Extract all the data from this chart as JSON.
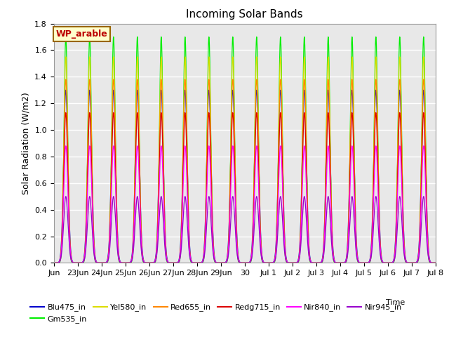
{
  "title": "Incoming Solar Bands",
  "xlabel": "Time",
  "ylabel": "Solar Radiation (W/m2)",
  "ylim": [
    0,
    1.8
  ],
  "plot_bg_color": "#e8e8e8",
  "legend_label": "WP_arable",
  "series": [
    {
      "name": "Blu475_in",
      "color": "#0000cc",
      "peak": 1.3,
      "sigma": 0.09
    },
    {
      "name": "Gm535_in",
      "color": "#00ee00",
      "peak": 1.7,
      "sigma": 0.075
    },
    {
      "name": "Yel580_in",
      "color": "#dddd00",
      "peak": 1.55,
      "sigma": 0.08
    },
    {
      "name": "Red655_in",
      "color": "#ff8800",
      "peak": 1.38,
      "sigma": 0.085
    },
    {
      "name": "Redg715_in",
      "color": "#dd0000",
      "peak": 1.13,
      "sigma": 0.085
    },
    {
      "name": "Nir840_in",
      "color": "#ff00ff",
      "peak": 0.88,
      "sigma": 0.09
    },
    {
      "name": "Nir945_in",
      "color": "#9900cc",
      "peak": 0.5,
      "sigma": 0.09
    }
  ],
  "num_days": 16,
  "x_tick_labels": [
    "Jun",
    "23Jun",
    "24Jun",
    "25Jun",
    "26Jun",
    "27Jun",
    "28Jun",
    "29Jun",
    "30",
    "Jul 1",
    "Jul 2",
    "Jul 3",
    "Jul 4",
    "Jul 5",
    "Jul 6",
    "Jul 7",
    "Jul 8"
  ],
  "x_tick_positions": [
    0,
    1,
    2,
    3,
    4,
    5,
    6,
    7,
    8,
    9,
    10,
    11,
    12,
    13,
    14,
    15,
    16
  ],
  "grid_color": "#cccccc",
  "yticks": [
    0.0,
    0.2,
    0.4,
    0.6,
    0.8,
    1.0,
    1.2,
    1.4,
    1.6,
    1.8
  ]
}
